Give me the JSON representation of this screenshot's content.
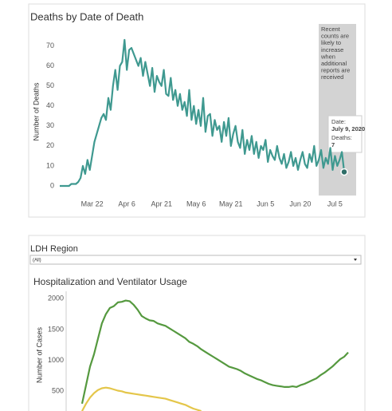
{
  "chart_data": [
    {
      "type": "line",
      "title": "Deaths by Date of Death",
      "y_label": "Number of Deaths",
      "x": [
        "Mar 8",
        "Mar 9",
        "Mar 10",
        "Mar 11",
        "Mar 12",
        "Mar 13",
        "Mar 14",
        "Mar 15",
        "Mar 16",
        "Mar 17",
        "Mar 18",
        "Mar 19",
        "Mar 20",
        "Mar 21",
        "Mar 22",
        "Mar 23",
        "Mar 24",
        "Mar 25",
        "Mar 26",
        "Mar 27",
        "Mar 28",
        "Mar 29",
        "Mar 30",
        "Mar 31",
        "Apr 1",
        "Apr 2",
        "Apr 3",
        "Apr 4",
        "Apr 5",
        "Apr 6",
        "Apr 7",
        "Apr 8",
        "Apr 9",
        "Apr 10",
        "Apr 11",
        "Apr 12",
        "Apr 13",
        "Apr 14",
        "Apr 15",
        "Apr 16",
        "Apr 17",
        "Apr 18",
        "Apr 19",
        "Apr 20",
        "Apr 21",
        "Apr 22",
        "Apr 23",
        "Apr 24",
        "Apr 25",
        "Apr 26",
        "Apr 27",
        "Apr 28",
        "Apr 29",
        "Apr 30",
        "May 1",
        "May 2",
        "May 3",
        "May 4",
        "May 5",
        "May 6",
        "May 7",
        "May 8",
        "May 9",
        "May 10",
        "May 11",
        "May 12",
        "May 13",
        "May 14",
        "May 15",
        "May 16",
        "May 17",
        "May 18",
        "May 19",
        "May 20",
        "May 21",
        "May 22",
        "May 23",
        "May 24",
        "May 25",
        "May 26",
        "May 27",
        "May 28",
        "May 29",
        "May 30",
        "May 31",
        "Jun 1",
        "Jun 2",
        "Jun 3",
        "Jun 4",
        "Jun 5",
        "Jun 6",
        "Jun 7",
        "Jun 8",
        "Jun 9",
        "Jun 10",
        "Jun 11",
        "Jun 12",
        "Jun 13",
        "Jun 14",
        "Jun 15",
        "Jun 16",
        "Jun 17",
        "Jun 18",
        "Jun 19",
        "Jun 20",
        "Jun 21",
        "Jun 22",
        "Jun 23",
        "Jun 24",
        "Jun 25",
        "Jun 26",
        "Jun 27",
        "Jun 28",
        "Jun 29",
        "Jun 30",
        "Jul 1",
        "Jul 2",
        "Jul 3",
        "Jul 4",
        "Jul 5",
        "Jul 6",
        "Jul 7",
        "Jul 8",
        "Jul 9"
      ],
      "values": [
        0,
        0,
        0,
        0,
        0,
        1,
        1,
        1,
        2,
        4,
        10,
        6,
        13,
        8,
        15,
        22,
        26,
        30,
        34,
        36,
        33,
        44,
        38,
        50,
        58,
        48,
        60,
        62,
        73,
        58,
        68,
        69,
        66,
        63,
        60,
        64,
        55,
        62,
        56,
        50,
        59,
        47,
        55,
        52,
        50,
        58,
        46,
        45,
        54,
        43,
        48,
        40,
        46,
        38,
        42,
        35,
        48,
        33,
        40,
        31,
        38,
        30,
        44,
        27,
        35,
        36,
        25,
        33,
        28,
        30,
        22,
        32,
        25,
        34,
        20,
        26,
        30,
        22,
        19,
        28,
        16,
        23,
        18,
        25,
        16,
        22,
        14,
        20,
        18,
        23,
        12,
        18,
        15,
        13,
        20,
        14,
        11,
        16,
        9,
        12,
        17,
        10,
        14,
        8,
        13,
        17,
        11,
        9,
        16,
        12,
        20,
        10,
        13,
        18,
        9,
        14,
        11,
        19,
        8,
        15,
        10,
        13,
        17,
        7
      ],
      "color": "#3f9990",
      "xticks": [
        "Mar 22",
        "Apr 6",
        "Apr 21",
        "May 6",
        "May 21",
        "Jun 5",
        "Jun 20",
        "Jul 5"
      ],
      "ylim": [
        -2,
        77
      ],
      "yticks": [
        0,
        10,
        20,
        30,
        40,
        50,
        60,
        70
      ],
      "annotation": [
        "Recent",
        "counts are",
        "likely to",
        "increase",
        "when",
        "additional",
        "reports are",
        "received"
      ],
      "tooltip": {
        "date_label": "Date:",
        "date": "July 9, 2020",
        "value_label": "Deaths:",
        "value": 7
      }
    },
    {
      "type": "line",
      "filter_label": "LDH Region",
      "filter_value": "(All)",
      "title": "Hospitalization and Ventilator Usage",
      "y_label": "Number of Cases",
      "ylim": [
        0,
        2120
      ],
      "yticks": [
        500,
        1000,
        1500,
        2000
      ],
      "series": [
        {
          "color": "#55993f",
          "values": [
            300,
            600,
            900,
            1100,
            1350,
            1600,
            1750,
            1850,
            1880,
            1940,
            1950,
            1970,
            1960,
            1900,
            1820,
            1720,
            1680,
            1650,
            1640,
            1600,
            1580,
            1560,
            1520,
            1480,
            1440,
            1400,
            1360,
            1300,
            1270,
            1230,
            1180,
            1140,
            1100,
            1060,
            1020,
            980,
            940,
            900,
            880,
            860,
            830,
            790,
            760,
            730,
            700,
            680,
            650,
            620,
            600,
            590,
            580,
            570,
            570,
            580,
            570,
            600,
            620,
            650,
            680,
            710,
            760,
            800,
            850,
            900,
            960,
            1020,
            1060,
            1130
          ]
        },
        {
          "color": "#e4c64a",
          "values": [
            180,
            300,
            400,
            470,
            520,
            550,
            560,
            550,
            530,
            510,
            500,
            480,
            470,
            460,
            450,
            440,
            430,
            420,
            410,
            400,
            390,
            380,
            360,
            340,
            320,
            300,
            280,
            250,
            220,
            200,
            180,
            null,
            null,
            null,
            null,
            null,
            null,
            null,
            null,
            null,
            null,
            null,
            null,
            null,
            null,
            null,
            null,
            null,
            null,
            null,
            null,
            null,
            null,
            null,
            null,
            null,
            null,
            null,
            null,
            null,
            null,
            null,
            null,
            null,
            null,
            null,
            null,
            null
          ]
        }
      ]
    }
  ]
}
